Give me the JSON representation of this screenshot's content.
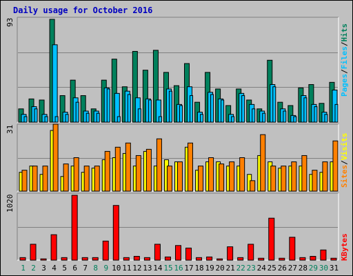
{
  "title": "Daily usage for October 2016",
  "colors": {
    "title": "#0000c0",
    "hits": "#00805c",
    "files": "#00c0ff",
    "pages": "#00c0ff",
    "visits": "#ffff00",
    "sites": "#ff8000",
    "kbytes": "#ff0000",
    "weekend_day": "#00805c",
    "weekday": "#000000",
    "panel_bg": "#c0c0c0"
  },
  "legend": {
    "hits_pages": [
      "Pages",
      "/",
      "Files",
      "/",
      "Hits"
    ],
    "visits_sites": [
      "Sites",
      "/",
      "Visits"
    ],
    "kbytes": [
      "KBytes"
    ]
  },
  "chart_data": {
    "type": "bar",
    "title": "Daily usage for October 2016",
    "x": [
      1,
      2,
      3,
      4,
      5,
      6,
      7,
      8,
      9,
      10,
      11,
      12,
      13,
      14,
      15,
      16,
      17,
      18,
      19,
      20,
      21,
      22,
      23,
      24,
      25,
      26,
      27,
      28,
      29,
      30,
      31
    ],
    "weekend_days": [
      1,
      2,
      8,
      9,
      15,
      16,
      22,
      23,
      29,
      30
    ],
    "panels": [
      {
        "name": "hits-files-pages",
        "ymax_label": "93",
        "ylim": [
          0,
          93
        ],
        "series": [
          {
            "name": "Hits",
            "color": "#00805c",
            "values": [
              12,
              21,
              20,
              93,
              24,
              38,
              24,
              12,
              38,
              57,
              32,
              64,
              47,
              65,
              45,
              33,
              53,
              18,
              45,
              30,
              15,
              30,
              20,
              12,
              56,
              18,
              15,
              31,
              34,
              17,
              36
            ]
          },
          {
            "name": "Files",
            "color": "#00c0ff",
            "values": [
              7,
              14,
              7,
              70,
              9,
              22,
              10,
              10,
              31,
              26,
              28,
              22,
              21,
              20,
              30,
              16,
              32,
              9,
              27,
              21,
              7,
              26,
              16,
              10,
              34,
              12,
              6,
              24,
              16,
              9,
              29
            ]
          },
          {
            "name": "Pages",
            "color": "#00c0ff",
            "values": [
              5,
              12,
              5,
              5,
              7,
              18,
              8,
              8,
              30,
              5,
              25,
              12,
              20,
              5,
              28,
              15,
              24,
              7,
              25,
              20,
              5,
              24,
              12,
              8,
              32,
              10,
              5,
              22,
              14,
              7,
              16
            ]
          }
        ]
      },
      {
        "name": "visits-sites",
        "ymax_label": "31",
        "ylim": [
          0,
          31
        ],
        "series": [
          {
            "name": "Visits",
            "color": "#ffff00",
            "values": [
              9,
              12,
              8,
              29,
              7,
              12,
              9,
              11,
              15,
              16,
              18,
              12,
              19,
              12,
              15,
              14,
              21,
              10,
              14,
              14,
              12,
              12,
              8,
              17,
              14,
              11,
              12,
              12,
              8,
              9,
              14
            ]
          },
          {
            "name": "Sites",
            "color": "#ff8000",
            "values": [
              10,
              12,
              12,
              32,
              13,
              16,
              12,
              12,
              19,
              21,
              23,
              17,
              20,
              25,
              12,
              14,
              23,
              12,
              16,
              13,
              14,
              16,
              5,
              27,
              12,
              12,
              14,
              17,
              10,
              14,
              24
            ]
          }
        ]
      },
      {
        "name": "kbytes",
        "ymax_label": "1020",
        "ylim": [
          0,
          1020
        ],
        "series": [
          {
            "name": "KBytes",
            "color": "#ff0000",
            "values": [
              40,
              250,
              20,
              400,
              40,
              1020,
              40,
              40,
              300,
              860,
              40,
              60,
              40,
              250,
              50,
              230,
              190,
              40,
              50,
              20,
              210,
              40,
              250,
              30,
              660,
              30,
              360,
              40,
              60,
              160,
              30
            ]
          }
        ]
      }
    ]
  }
}
